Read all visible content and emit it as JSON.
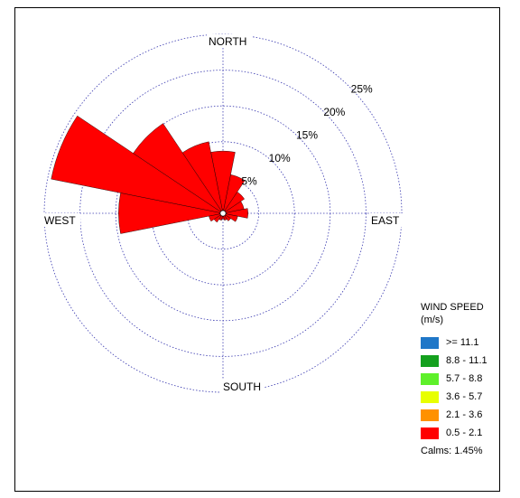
{
  "chart_data": {
    "type": "wind-rose",
    "directions": [
      "N",
      "NNE",
      "NE",
      "ENE",
      "E",
      "ESE",
      "SE",
      "SSE",
      "S",
      "SSW",
      "SW",
      "WSW",
      "W",
      "WNW",
      "NW",
      "NNW"
    ],
    "compass_labels": {
      "north": "NORTH",
      "east": "EAST",
      "south": "SOUTH",
      "west": "WEST"
    },
    "rings": [
      5,
      10,
      15,
      20,
      25
    ],
    "ring_labels": [
      "5%",
      "10%",
      "15%",
      "20%",
      "25%"
    ],
    "rmax": 25,
    "legend_title": "WIND SPEED",
    "legend_unit": "(m/s)",
    "calms": "Calms: 1.45%",
    "bins": [
      {
        "label": ">= 11.1",
        "color": "#1f77c8"
      },
      {
        "label": "8.8 - 11.1",
        "color": "#14a01e"
      },
      {
        "label": "5.7 -  8.8",
        "color": "#5ef02a"
      },
      {
        "label": "3.6 -  5.7",
        "color": "#e8ff00"
      },
      {
        "label": "2.1 -  3.6",
        "color": "#ff9100"
      },
      {
        "label": "0.5 -  2.1",
        "color": "#ff0000"
      }
    ],
    "cumulative": {
      "N": [
        0,
        0,
        0.2,
        2.2,
        5.8,
        8.7
      ],
      "NNE": [
        0,
        0,
        0.2,
        1.2,
        3.4,
        5.5
      ],
      "NE": [
        0,
        0.2,
        0.5,
        1.5,
        2.9,
        3.6
      ],
      "ENE": [
        0,
        0.2,
        0.5,
        1.2,
        2.1,
        3.0
      ],
      "E": [
        0.2,
        0.6,
        0.9,
        1.7,
        2.0,
        3.5
      ],
      "ESE": [
        0.2,
        0.5,
        0.9,
        1.3,
        1.6,
        2.1
      ],
      "SE": [
        0,
        0.2,
        0.5,
        0.8,
        1.0,
        1.3
      ],
      "SSE": [
        0,
        0,
        0.2,
        0.5,
        0.7,
        1.0
      ],
      "S": [
        0,
        0,
        0.2,
        0.4,
        0.6,
        0.8
      ],
      "SSW": [
        0,
        0,
        0.2,
        0.4,
        0.7,
        1.0
      ],
      "SW": [
        0,
        0,
        0.2,
        0.5,
        1.0,
        1.5
      ],
      "WSW": [
        0,
        0,
        0.3,
        0.6,
        1.5,
        2.0
      ],
      "W": [
        0,
        0.6,
        1.7,
        7.3,
        13.1,
        14.6
      ],
      "WNW": [
        0,
        1.5,
        3.2,
        12.6,
        22.8,
        24.5
      ],
      "NW": [
        0,
        0,
        1.0,
        5.6,
        13.8,
        15.1
      ],
      "NNW": [
        0,
        0,
        0.8,
        4.3,
        9.4,
        10.2
      ]
    }
  }
}
